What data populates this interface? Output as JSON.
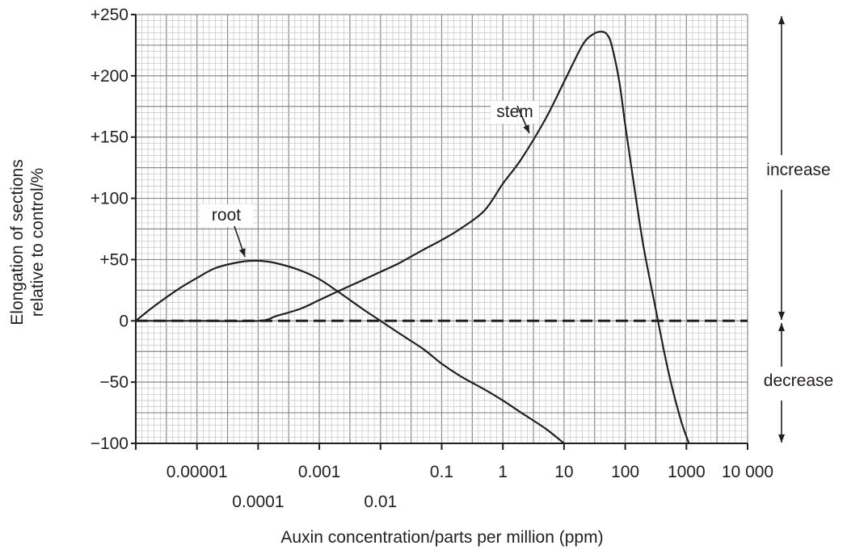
{
  "chart_data": {
    "type": "line",
    "xlabel": "Auxin concentration/parts per million (ppm)",
    "ylabel_lines": [
      "Elongation of sections",
      "relative to control/%"
    ],
    "x_scale": "log10",
    "xlim": [
      1e-06,
      10000
    ],
    "ylim": [
      -100,
      250
    ],
    "grid": true,
    "x_ticks": [
      1e-06,
      1e-05,
      0.0001,
      0.001,
      0.01,
      0.1,
      1,
      10,
      100,
      1000,
      10000
    ],
    "x_tick_labels_upper": [
      {
        "x": 1e-05,
        "label": "0.00001"
      },
      {
        "x": 0.001,
        "label": "0.001"
      },
      {
        "x": 0.1,
        "label": "0.1"
      },
      {
        "x": 1,
        "label": "1"
      },
      {
        "x": 10,
        "label": "10"
      },
      {
        "x": 100,
        "label": "100"
      },
      {
        "x": 1000,
        "label": "1000"
      },
      {
        "x": 10000,
        "label": "10 000"
      }
    ],
    "x_tick_labels_lower": [
      {
        "x": 0.0001,
        "label": "0.0001"
      },
      {
        "x": 0.01,
        "label": "0.01"
      }
    ],
    "y_ticks": [
      {
        "y": 250,
        "label": "+250"
      },
      {
        "y": 200,
        "label": "+200"
      },
      {
        "y": 150,
        "label": "+150"
      },
      {
        "y": 100,
        "label": "+100"
      },
      {
        "y": 50,
        "label": "+50"
      },
      {
        "y": 0,
        "label": "0"
      },
      {
        "y": -50,
        "label": "−50"
      },
      {
        "y": -100,
        "label": "−100"
      }
    ],
    "reference_line": {
      "y": 0,
      "style": "dashed"
    },
    "series": [
      {
        "name": "root",
        "x": [
          1e-06,
          2e-06,
          5e-06,
          1e-05,
          2e-05,
          5e-05,
          0.0001,
          0.0002,
          0.0005,
          0.001,
          0.002,
          0.005,
          0.01,
          0.02,
          0.05,
          0.1,
          0.2,
          0.5,
          1,
          2,
          5,
          10
        ],
        "y": [
          0,
          12,
          26,
          35,
          43,
          48,
          49,
          47,
          41,
          34,
          24,
          10,
          0,
          -10,
          -23,
          -35,
          -45,
          -56,
          -65,
          -75,
          -88,
          -100
        ]
      },
      {
        "name": "stem",
        "x": [
          1e-06,
          1e-05,
          0.0001,
          0.0002,
          0.0005,
          0.001,
          0.002,
          0.005,
          0.01,
          0.02,
          0.05,
          0.1,
          0.2,
          0.5,
          1,
          2,
          5,
          10,
          20,
          30,
          40,
          50,
          60,
          80,
          100,
          150,
          200,
          300,
          500,
          800,
          1100
        ],
        "y": [
          0,
          0,
          0,
          4,
          10,
          17,
          24,
          33,
          40,
          47,
          58,
          66,
          75,
          90,
          112,
          132,
          165,
          195,
          225,
          234,
          236,
          234,
          225,
          195,
          160,
          100,
          60,
          15,
          -40,
          -80,
          -100
        ]
      }
    ],
    "annotations": [
      {
        "label": "stem",
        "target_series": "stem"
      },
      {
        "label": "root",
        "target_series": "root"
      }
    ],
    "side_indicator": {
      "increase_label": "increase",
      "decrease_label": "decrease"
    }
  }
}
